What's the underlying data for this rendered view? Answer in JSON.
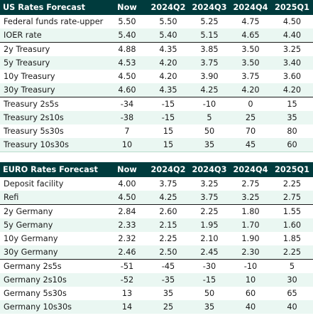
{
  "us": {
    "headers": [
      "US Rates Forecast",
      "Now",
      "2024Q2",
      "2024Q3",
      "2024Q4",
      "2025Q1"
    ],
    "rows": [
      [
        "Federal funds rate-upper",
        "5.50",
        "5.50",
        "5.25",
        "4.75",
        "4.50"
      ],
      [
        "IOER rate",
        "5.40",
        "5.40",
        "5.15",
        "4.65",
        "4.40"
      ],
      [
        "2y Treasury",
        "4.88",
        "4.35",
        "3.85",
        "3.50",
        "3.25"
      ],
      [
        "5y Treasury",
        "4.53",
        "4.20",
        "3.75",
        "3.50",
        "3.40"
      ],
      [
        "10y Treasury",
        "4.50",
        "4.20",
        "3.90",
        "3.75",
        "3.60"
      ],
      [
        "30y Treasury",
        "4.60",
        "4.35",
        "4.25",
        "4.20",
        "4.20"
      ],
      [
        "Treasury 2s5s",
        "-34",
        "-15",
        "-10",
        "0",
        "15"
      ],
      [
        "Treasury 2s10s",
        "-38",
        "-15",
        "5",
        "25",
        "35"
      ],
      [
        "Treasury 5s30s",
        "7",
        "15",
        "50",
        "70",
        "80"
      ],
      [
        "Treasury 10s30s",
        "10",
        "15",
        "35",
        "45",
        "60"
      ]
    ]
  },
  "euro": {
    "headers": [
      "EURO Rates Forecast",
      "Now",
      "2024Q2",
      "2024Q3",
      "2024Q4",
      "2025Q1"
    ],
    "rows": [
      [
        "Deposit facility",
        "4.00",
        "3.75",
        "3.25",
        "2.75",
        "2.25"
      ],
      [
        "Refi",
        "4.50",
        "4.25",
        "3.75",
        "3.25",
        "2.75"
      ],
      [
        "2y Germany",
        "2.84",
        "2.60",
        "2.25",
        "1.80",
        "1.55"
      ],
      [
        "5y Germany",
        "2.33",
        "2.15",
        "1.95",
        "1.70",
        "1.60"
      ],
      [
        "10y Germany",
        "2.32",
        "2.25",
        "2.10",
        "1.90",
        "1.85"
      ],
      [
        "30y Germany",
        "2.46",
        "2.50",
        "2.45",
        "2.30",
        "2.25"
      ],
      [
        "Germany 2s5s",
        "-51",
        "-45",
        "-30",
        "-10",
        "5"
      ],
      [
        "Germany 2s10s",
        "-52",
        "-35",
        "-15",
        "10",
        "30"
      ],
      [
        "Germany 5s30s",
        "13",
        "35",
        "50",
        "60",
        "65"
      ],
      [
        "Germany 10s30s",
        "14",
        "25",
        "35",
        "40",
        "40"
      ]
    ]
  },
  "colors": {
    "header_bg": "#003b3d",
    "tint": "#eaf7f2",
    "text": "#1a1a1a"
  }
}
